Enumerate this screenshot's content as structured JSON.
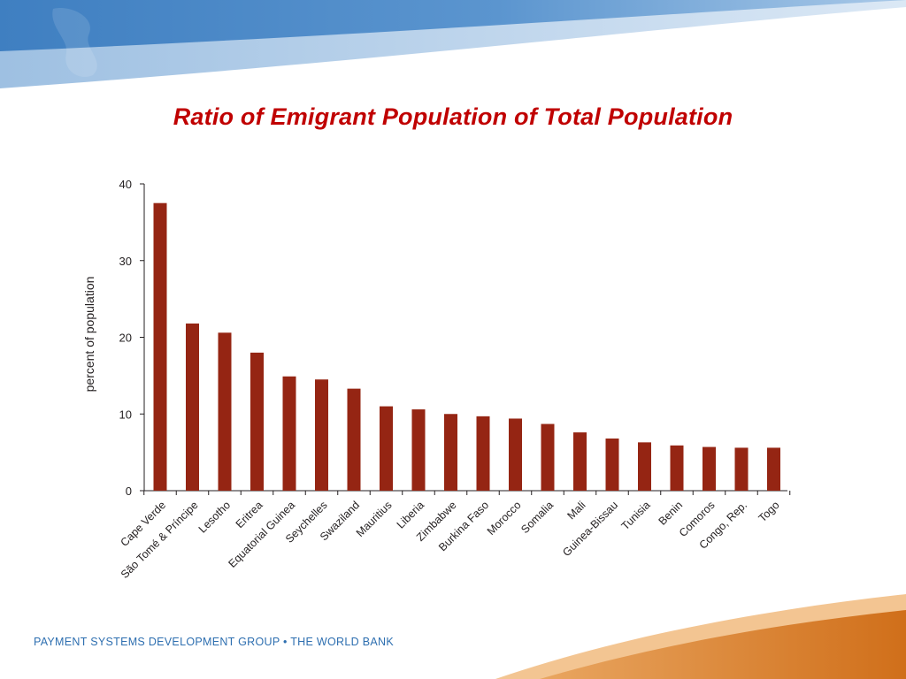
{
  "slide": {
    "title": "Ratio of Emigrant Population of Total Population",
    "footer": "PAYMENT SYSTEMS DEVELOPMENT GROUP • THE WORLD BANK",
    "colors": {
      "title": "#c00000",
      "bar": "#952513",
      "header_blue": "#4a86c5",
      "footer_orange": "#d9781e"
    }
  },
  "chart_data": {
    "type": "bar",
    "title": "",
    "xlabel": "",
    "ylabel": "percent of population",
    "ylim": [
      0,
      40
    ],
    "yticks": [
      0,
      10,
      20,
      30,
      40
    ],
    "grid": false,
    "categories": [
      "Cape Verde",
      "São Tomé & Príncipe",
      "Lesotho",
      "Eritrea",
      "Equatorial Guinea",
      "Seychelles",
      "Swaziland",
      "Mauritius",
      "Liberia",
      "Zimbabwe",
      "Burkina Faso",
      "Morocco",
      "Somalia",
      "Mali",
      "Guinea-Bissau",
      "Tunisia",
      "Benin",
      "Comoros",
      "Congo, Rep.",
      "Togo"
    ],
    "values": [
      37.5,
      21.8,
      20.6,
      18.0,
      14.9,
      14.5,
      13.3,
      11.0,
      10.6,
      10.0,
      9.7,
      9.4,
      8.7,
      7.6,
      6.8,
      6.3,
      5.9,
      5.7,
      5.6,
      5.6
    ]
  }
}
